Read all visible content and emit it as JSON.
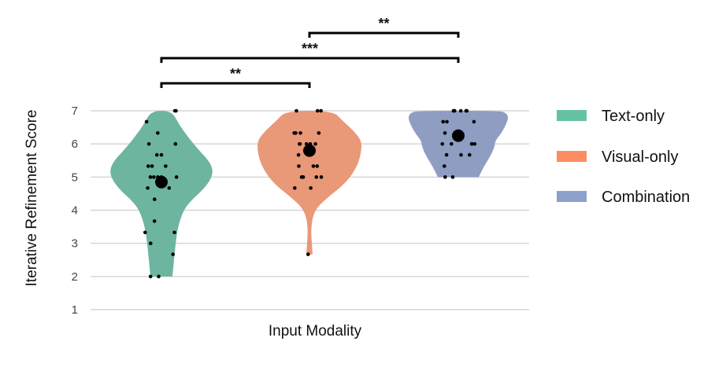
{
  "chart_data": {
    "type": "violin",
    "title": "",
    "xlabel": "Input Modality",
    "ylabel": "Iterative Refinement Score",
    "ylim": [
      1,
      7
    ],
    "yticks": [
      1,
      2,
      3,
      4,
      5,
      6,
      7
    ],
    "grid": true,
    "legend_position": "right",
    "categories": [
      "Text-only",
      "Visual-only",
      "Combination"
    ],
    "colors": {
      "Text-only": "#6db5a0",
      "Visual-only": "#e99878",
      "Combination": "#8f9dc2"
    },
    "legend_colors": {
      "Text-only": "#66c2a5",
      "Visual-only": "#fc8d62",
      "Combination": "#8da0cb"
    },
    "series": [
      {
        "name": "Text-only",
        "mean": 4.85,
        "range": [
          2.0,
          7.0
        ],
        "density_peak": 5.2,
        "points": [
          7.0,
          7.0,
          6.67,
          6.33,
          6.0,
          6.0,
          5.67,
          5.67,
          5.33,
          5.33,
          5.33,
          5.0,
          5.0,
          5.0,
          5.0,
          5.0,
          4.67,
          4.67,
          4.33,
          3.67,
          3.33,
          3.33,
          3.0,
          2.67,
          2.0,
          2.0
        ]
      },
      {
        "name": "Visual-only",
        "mean": 5.8,
        "range": [
          2.67,
          7.0
        ],
        "density_peak": 6.0,
        "points": [
          7.0,
          7.0,
          7.0,
          6.33,
          6.33,
          6.33,
          6.33,
          6.0,
          6.0,
          6.0,
          6.0,
          6.0,
          5.67,
          5.33,
          5.33,
          5.33,
          5.0,
          5.0,
          5.0,
          5.0,
          4.67,
          4.67,
          2.67
        ]
      },
      {
        "name": "Combination",
        "mean": 6.25,
        "range": [
          5.0,
          7.0
        ],
        "density_peak": 6.8,
        "points": [
          7.0,
          7.0,
          7.0,
          7.0,
          7.0,
          6.67,
          6.67,
          6.67,
          6.33,
          6.33,
          6.0,
          6.0,
          6.0,
          6.0,
          6.0,
          5.67,
          5.67,
          5.67,
          5.33,
          5.0,
          5.0
        ]
      }
    ],
    "significance": [
      {
        "from": "Text-only",
        "to": "Visual-only",
        "label": "**"
      },
      {
        "from": "Text-only",
        "to": "Combination",
        "label": "***"
      },
      {
        "from": "Visual-only",
        "to": "Combination",
        "label": "**"
      }
    ]
  }
}
